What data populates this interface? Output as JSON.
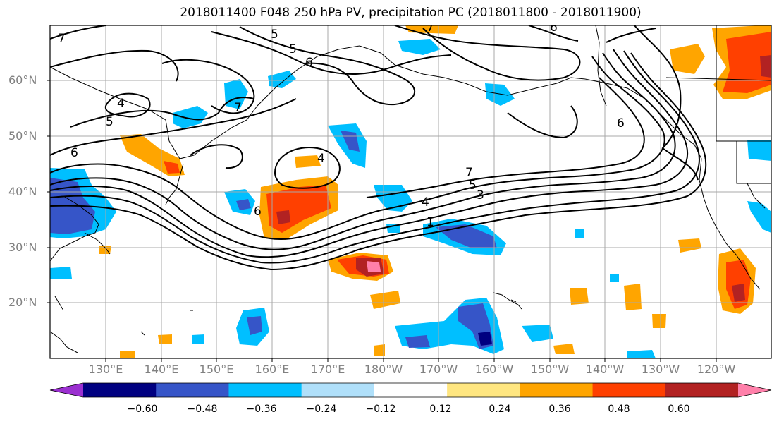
{
  "title": "2018011400 F048 250 hPa PV, precipitation PC (2018011800 - 2018011900)",
  "lat_labels": [
    "60°N",
    "50°N",
    "40°N",
    "30°N",
    "20°N"
  ],
  "lon_labels": [
    "130°E",
    "140°E",
    "150°E",
    "160°E",
    "170°E",
    "180°W",
    "170°W",
    "160°W",
    "150°W",
    "140°W",
    "130°W",
    "120°W"
  ],
  "colorbar": {
    "colors": [
      "#9b30d0",
      "#000080",
      "#3655c8",
      "#00bfff",
      "#b0e0fa",
      "#ffffff",
      "#ffe680",
      "#ffa500",
      "#ff4000",
      "#b22222",
      "#ff80aa"
    ],
    "tick_labels": [
      "−0.60",
      "−0.48",
      "−0.36",
      "−0.24",
      "−0.12",
      "0.12",
      "0.24",
      "0.36",
      "0.48",
      "0.60"
    ]
  },
  "contour_labels": [
    "7",
    "5",
    "6",
    "4",
    "5",
    "6",
    "7",
    "4",
    "6",
    "6",
    "7",
    "5",
    "4",
    "3",
    "1",
    "7",
    "6",
    "5"
  ]
}
